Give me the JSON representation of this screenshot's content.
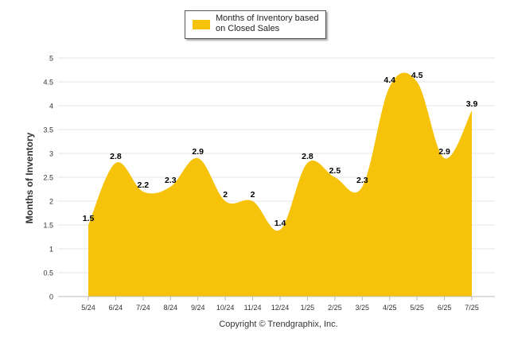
{
  "legend": {
    "label": "Months of Inventory based on Closed Sales"
  },
  "copyright": "Copyright © Trendgraphix, Inc.",
  "colors": {
    "area": "#F6C30A",
    "grid": "#e6e6e6",
    "axis": "#bbbbbb",
    "text": "#333333"
  },
  "chart_data": {
    "type": "area",
    "title": "",
    "xlabel": "",
    "ylabel": "Months of Inventory",
    "ylim": [
      0,
      5
    ],
    "yticks": [
      "0",
      "0.5",
      "1",
      "1.5",
      "2",
      "2.5",
      "3",
      "3.5",
      "4",
      "4.5",
      "5"
    ],
    "grid": true,
    "legend_position": "top-center",
    "categories": [
      "5/24",
      "6/24",
      "7/24",
      "8/24",
      "9/24",
      "10/24",
      "11/24",
      "12/24",
      "1/25",
      "2/25",
      "3/25",
      "4/25",
      "5/25",
      "6/25",
      "7/25"
    ],
    "series": [
      {
        "name": "Months of Inventory based on Closed Sales",
        "values": [
          1.5,
          2.8,
          2.2,
          2.3,
          2.9,
          2,
          2,
          1.4,
          2.8,
          2.5,
          2.3,
          4.4,
          4.5,
          2.9,
          3.9
        ],
        "labels": [
          "1.5",
          "2.8",
          "2.2",
          "2.3",
          "2.9",
          "2",
          "2",
          "1.4",
          "2.8",
          "2.5",
          "2.3",
          "4.4",
          "4.5",
          "2.9",
          "3.9"
        ]
      }
    ]
  }
}
